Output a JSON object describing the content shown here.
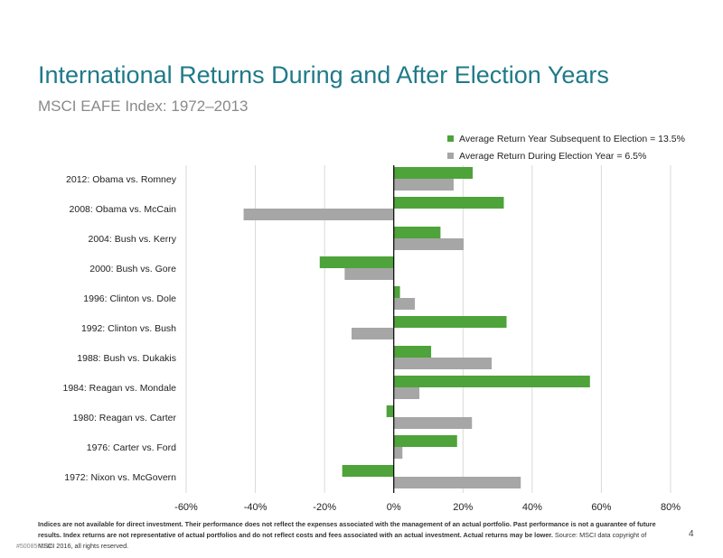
{
  "header": {
    "title": "International Returns During and After Election Years",
    "subtitle": "MSCI EAFE Index: 1972–2013"
  },
  "colors": {
    "after": "#4ea33a",
    "during": "#a6a6a6",
    "title": "#1f7a88"
  },
  "chart_data": {
    "type": "bar",
    "orientation": "horizontal",
    "categories": [
      "2012: Obama vs. Romney",
      "2008: Obama vs. McCain",
      "2004: Bush vs. Kerry",
      "2000: Bush vs. Gore",
      "1996: Clinton vs. Dole",
      "1992: Clinton vs. Bush",
      "1988: Bush vs. Dukakis",
      "1984: Reagan vs. Mondale",
      "1980: Reagan vs. Carter",
      "1976: Carter vs. Ford",
      "1972: Nixon vs. McGovern"
    ],
    "series": [
      {
        "name": "Average Return Year Subsequent to Election = 13.5%",
        "values": [
          22.8,
          31.8,
          13.5,
          -21.4,
          1.8,
          32.6,
          10.8,
          56.7,
          -2.1,
          18.3,
          -14.9
        ]
      },
      {
        "name": "Average Return During Election Year = 6.5%",
        "values": [
          17.3,
          -43.4,
          20.2,
          -14.2,
          6.1,
          -12.2,
          28.3,
          7.4,
          22.6,
          2.5,
          36.7
        ]
      }
    ],
    "xlim": [
      -60,
      80
    ],
    "xticks": [
      "-60%",
      "-40%",
      "-20%",
      "0%",
      "20%",
      "40%",
      "60%",
      "80%"
    ],
    "grid": true,
    "legend_position": "top-right"
  },
  "footer": {
    "disclaimer_bold": "Indices are not available for direct investment. Their performance does not reflect the expenses associated with the management of an actual portfolio. Past performance is not a guarantee of future results. Index returns are not representative of actual portfolios and do not reflect costs and fees associated with an actual investment. Actual returns may be lower.",
    "source": "Source: MSCI data copyright of MSCI 2016, all rights reserved.",
    "page_number": "4",
    "code": "#50085-0116"
  }
}
